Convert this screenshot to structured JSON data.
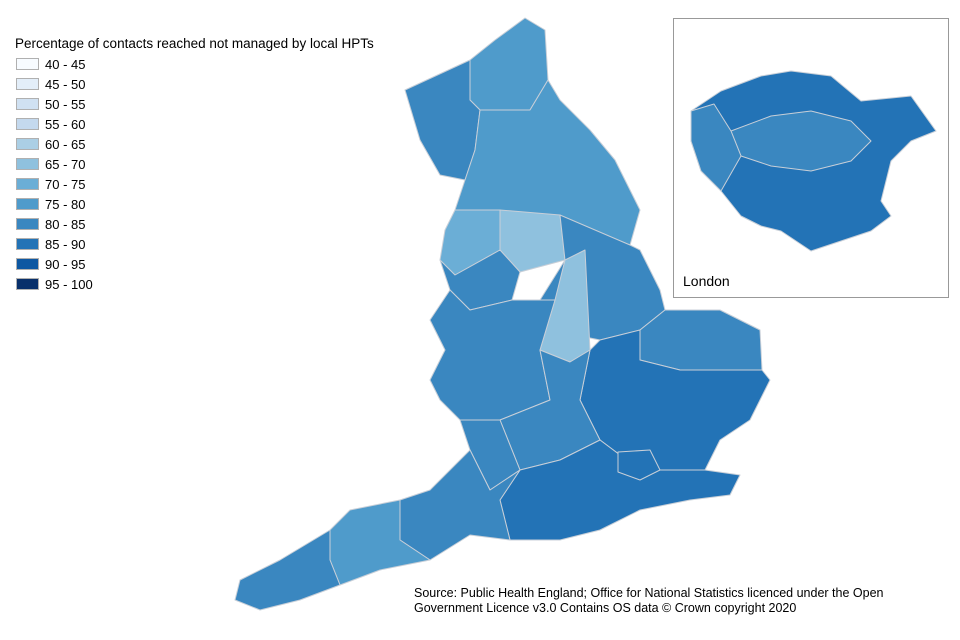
{
  "legend": {
    "title": "Percentage of contacts reached not managed by local HPTs",
    "items": [
      {
        "label": "40 - 45",
        "color": "#f7fbff"
      },
      {
        "label": "45 - 50",
        "color": "#e3eef9"
      },
      {
        "label": "50 - 55",
        "color": "#d0e1f2"
      },
      {
        "label": "55 - 60",
        "color": "#c4d9ee"
      },
      {
        "label": "60 - 65",
        "color": "#abcfe5"
      },
      {
        "label": "65 - 70",
        "color": "#8fc1de"
      },
      {
        "label": "70 - 75",
        "color": "#6baed6"
      },
      {
        "label": "75 - 80",
        "color": "#4f9bcb"
      },
      {
        "label": "80 - 85",
        "color": "#3a87c0"
      },
      {
        "label": "85 - 90",
        "color": "#2373b6"
      },
      {
        "label": "90 - 95",
        "color": "#0e58a2"
      },
      {
        "label": "95 - 100",
        "color": "#08306b"
      }
    ]
  },
  "inset": {
    "label": "London"
  },
  "source": {
    "line1": "Source: Public Health England; Office for National Statistics licenced under the Open",
    "line2": "Government Licence v3.0    Contains OS data © Crown copyright 2020"
  }
}
